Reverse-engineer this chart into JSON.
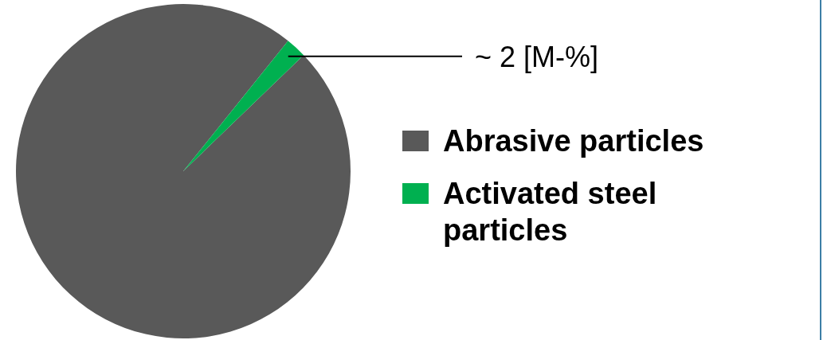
{
  "chart_data": {
    "type": "pie",
    "categories": [
      "Abrasive particles",
      "Activated steel particles"
    ],
    "values": [
      98,
      2
    ],
    "colors": [
      "#595959",
      "#00b050"
    ],
    "value_labels": [
      null,
      "~ 2 [M-%]"
    ],
    "legend": "right"
  }
}
